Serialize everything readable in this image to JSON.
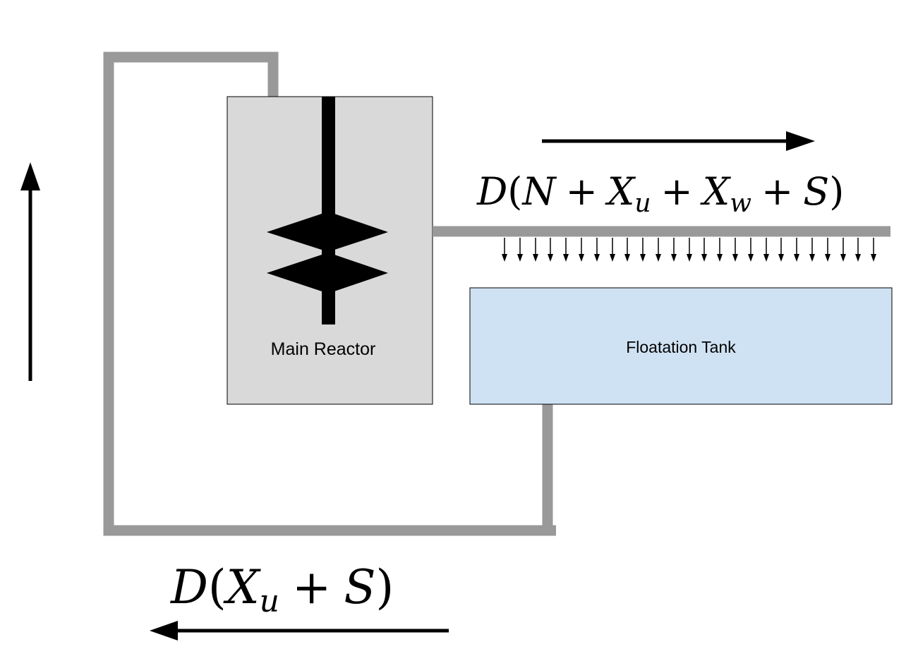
{
  "reactor": {
    "label": "Main Reactor"
  },
  "tank": {
    "label": "Floatation Tank"
  },
  "flows": {
    "forward": {
      "prefix": "D",
      "paren_open": "(",
      "t1": "N",
      "plus1": "+",
      "t2": "X",
      "t2_sub": "u",
      "plus2": "+",
      "t3": "X",
      "t3_sub": "w",
      "plus3": "+",
      "t4": "S",
      "paren_close": ")"
    },
    "recycle": {
      "prefix": "D",
      "paren_open": "(",
      "t1": "X",
      "t1_sub": "u",
      "plus1": "+",
      "t2": "S",
      "paren_close": ")"
    }
  },
  "colors": {
    "pipe": "#999999",
    "reactor_fill": "#d9d9d9",
    "tank_fill": "#cfe2f3",
    "stroke": "#000000"
  },
  "icons": {
    "impeller": "double-diamond-impeller",
    "spray": "down-arrow-row",
    "flow_arrows": "arrow"
  }
}
